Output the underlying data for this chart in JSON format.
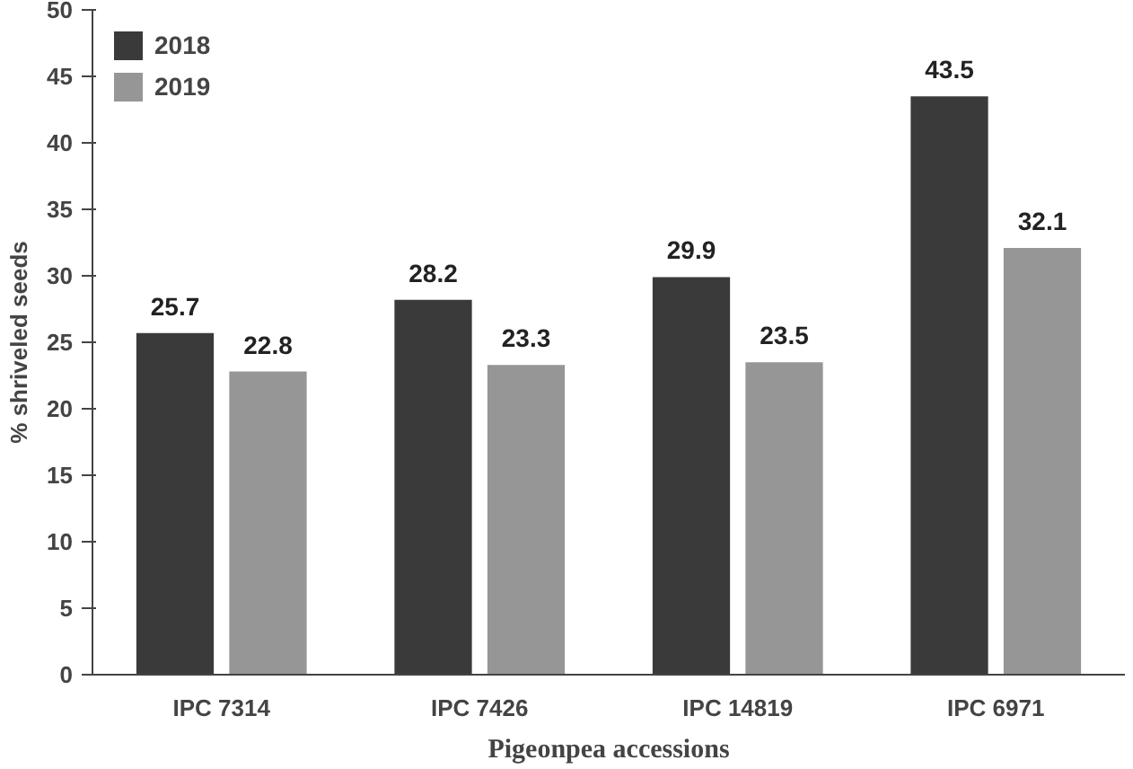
{
  "chart_data": {
    "type": "bar",
    "xlabel": "Pigeonpea accessions",
    "ylabel": "% shriveled seeds",
    "categories": [
      "IPC 7314",
      "IPC 7426",
      "IPC 14819",
      "IPC 6971"
    ],
    "series": [
      {
        "name": "2018",
        "color": "#3a3a3a",
        "values": [
          25.7,
          28.2,
          29.9,
          43.5
        ]
      },
      {
        "name": "2019",
        "color": "#969696",
        "values": [
          22.8,
          23.3,
          23.5,
          32.1
        ]
      }
    ],
    "ylim": [
      0,
      50
    ],
    "yticks": [
      0,
      5,
      10,
      15,
      20,
      25,
      30,
      35,
      40,
      45,
      50
    ],
    "data_labels": true,
    "grid": false,
    "legend": "top left"
  }
}
